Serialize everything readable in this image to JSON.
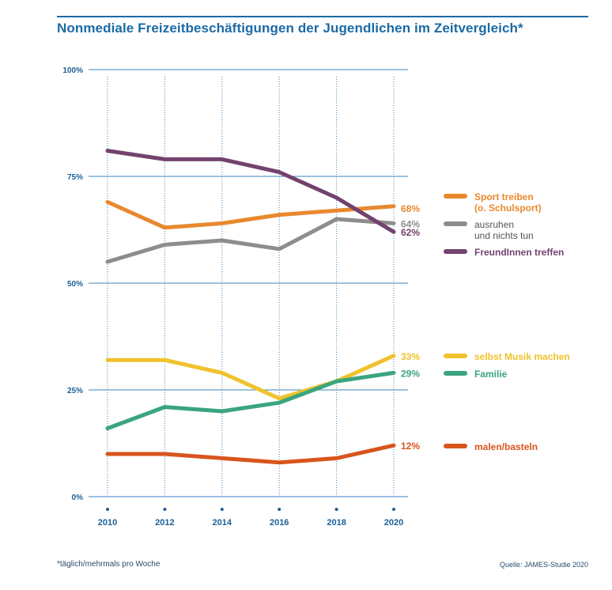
{
  "title": "Nonmediale Freizeitbeschäftigungen der Jugendlichen im Zeitvergleich*",
  "footnote": "*täglich/mehrmals pro Woche",
  "source": "Quelle: JAMES-Studie 2020",
  "colors": {
    "brand": "#1b6aa5",
    "axis_text": "#1b5f96",
    "grid": "#3d86c0"
  },
  "chart_data": {
    "type": "line",
    "x": [
      2010,
      2012,
      2014,
      2016,
      2018,
      2020
    ],
    "x_tick_labels": [
      "2010",
      "2012",
      "2014",
      "2016",
      "2018",
      "2020"
    ],
    "ylim": [
      0,
      100
    ],
    "y_ticks": [
      0,
      25,
      50,
      75,
      100
    ],
    "y_tick_labels": [
      "0%",
      "25%",
      "50%",
      "75%",
      "100%"
    ],
    "grid": true,
    "legend_position": "right",
    "series": [
      {
        "key": "sport",
        "name_lines": [
          "Sport treiben",
          "(o. Schulsport)"
        ],
        "values": [
          69,
          63,
          64,
          66,
          67,
          68
        ],
        "end_label": "68%",
        "color": "#e8892e"
      },
      {
        "key": "ausruhen",
        "name_lines": [
          "ausruhen",
          "und nichts tun"
        ],
        "values": [
          55,
          59,
          60,
          58,
          65,
          64
        ],
        "end_label": "64%",
        "color": "#8d8d8d"
      },
      {
        "key": "freunde",
        "name_lines": [
          "FreundInnen treffen"
        ],
        "values": [
          81,
          79,
          79,
          76,
          70,
          62
        ],
        "end_label": "62%",
        "color": "#73426e"
      },
      {
        "key": "musik",
        "name_lines": [
          "selbst Musik machen"
        ],
        "values": [
          32,
          32,
          29,
          23,
          27,
          33
        ],
        "end_label": "33%",
        "color": "#f0c22c"
      },
      {
        "key": "familie",
        "name_lines": [
          "Familie"
        ],
        "values": [
          16,
          21,
          20,
          22,
          27,
          29
        ],
        "end_label": "29%",
        "color": "#3aa57e"
      },
      {
        "key": "malen",
        "name_lines": [
          "malen/basteln"
        ],
        "values": [
          10,
          10,
          9,
          8,
          9,
          12
        ],
        "end_label": "12%",
        "color": "#d8551d"
      }
    ]
  }
}
